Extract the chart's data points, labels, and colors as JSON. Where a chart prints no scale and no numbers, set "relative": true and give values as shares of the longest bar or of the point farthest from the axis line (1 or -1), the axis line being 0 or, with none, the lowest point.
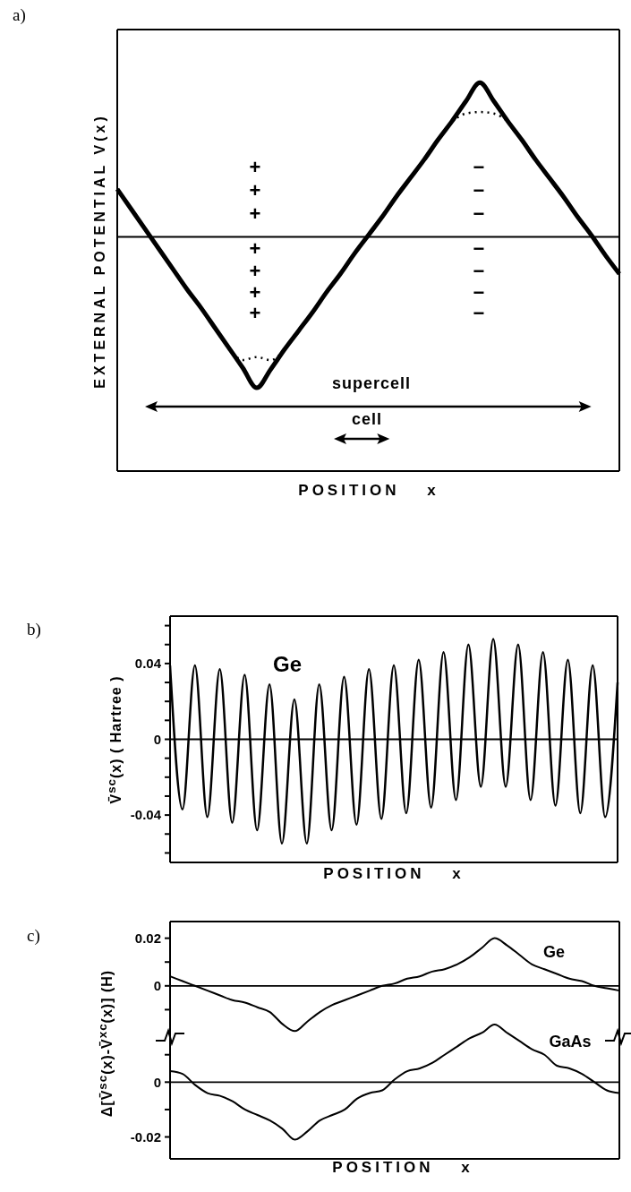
{
  "chart_data": [
    {
      "type": "line",
      "title": "a)",
      "xlabel": "POSITION x",
      "ylabel": "EXTERNAL POTENTIAL V(x)",
      "relative": true,
      "categories": [
        null,
        null,
        null,
        null,
        null,
        null,
        null,
        null,
        null,
        null,
        null,
        null,
        null,
        null,
        null,
        null,
        null,
        null,
        null,
        null,
        null,
        null,
        null,
        null,
        null,
        null,
        null,
        null,
        null,
        null,
        null,
        null,
        null,
        null,
        null,
        null,
        null
      ],
      "series": [
        {
          "color": "#000000",
          "values": [
            0.31,
            0.18,
            0.05,
            -0.08,
            -0.21,
            -0.34,
            -0.46,
            -0.59,
            -0.72,
            -0.85,
            -0.98,
            -0.86,
            -0.73,
            -0.61,
            -0.49,
            -0.36,
            -0.24,
            -0.11,
            0.01,
            0.13,
            0.26,
            0.38,
            0.5,
            0.63,
            0.75,
            0.88,
            1,
            0.88,
            0.75,
            0.63,
            0.5,
            0.38,
            0.26,
            0.13,
            0.01,
            -0.12,
            -0.24
          ]
        },
        {
          "color": "#000000",
          "line_style": "dotted",
          "values": [
            null,
            null,
            null,
            null,
            null,
            null,
            null,
            null,
            -0.72,
            -0.8,
            -0.78,
            -0.8,
            -0.73,
            null,
            null,
            null,
            null,
            null,
            null,
            null,
            null,
            null,
            null,
            null,
            0.75,
            0.8,
            0.81,
            0.8,
            0.75,
            null,
            null,
            null,
            null,
            null,
            null,
            null,
            null
          ]
        }
      ],
      "annotations": [
        "+",
        "+",
        "+",
        "+",
        "+",
        "+",
        "+",
        "−",
        "−",
        "−",
        "−",
        "−",
        "−",
        "−",
        "supercell",
        "cell"
      ]
    },
    {
      "type": "line",
      "title": "b)",
      "xlabel": "POSITION x",
      "ylabel": "V̄$^{sc}$(x)   ( Hartree )",
      "categories": [
        null,
        null,
        null,
        null,
        null,
        null,
        null,
        null,
        null,
        null,
        null,
        null,
        null,
        null,
        null,
        null,
        null,
        null,
        null,
        null,
        null,
        null,
        null,
        null,
        null,
        null,
        null,
        null,
        null,
        null,
        null,
        null,
        null,
        null,
        null,
        null,
        null
      ],
      "series": [
        {
          "name": "Ge",
          "color": "#000000",
          "values": [
            0.039,
            -0.037,
            0.039,
            -0.041,
            0.037,
            -0.044,
            0.034,
            -0.048,
            0.029,
            -0.055,
            0.021,
            -0.055,
            0.029,
            -0.048,
            0.033,
            -0.045,
            0.037,
            -0.042,
            0.039,
            -0.039,
            0.042,
            -0.036,
            0.046,
            -0.032,
            0.05,
            -0.025,
            0.053,
            -0.025,
            0.05,
            -0.032,
            0.046,
            -0.035,
            0.042,
            -0.039,
            0.039,
            -0.041,
            0.03
          ]
        }
      ],
      "ylim": [
        -0.065,
        0.065
      ],
      "yticks": [
        {
          "value": -0.06,
          "label": null
        },
        {
          "value": -0.05,
          "label": null
        },
        -0.04,
        {
          "value": -0.03,
          "label": null
        },
        {
          "value": -0.02,
          "label": null
        },
        {
          "value": -0.01,
          "label": null
        },
        0,
        {
          "value": 0.01,
          "label": null
        },
        {
          "value": 0.02,
          "label": null
        },
        {
          "value": 0.03,
          "label": null
        },
        0.04,
        {
          "value": 0.05,
          "label": null
        },
        {
          "value": 0.06,
          "label": null
        }
      ],
      "ref_lines": [
        {
          "axis": "y",
          "value": 0
        }
      ]
    },
    {
      "type": "line",
      "title": "c)",
      "ylabel": "Δ[V̄$^{sc}$(x)-V̄$^{xc}$(x)]   (H)",
      "categories": [
        null,
        null,
        null,
        null,
        null,
        null,
        null,
        null,
        null,
        null,
        null,
        null,
        null,
        null,
        null,
        null,
        null,
        null,
        null,
        null,
        null,
        null,
        null,
        null,
        null,
        null,
        null,
        null,
        null,
        null,
        null,
        null,
        null,
        null,
        null,
        null,
        null
      ],
      "series": [
        {
          "name": "Ge",
          "color": "#000000",
          "values": [
            0.004,
            0.002,
            0,
            -0.002,
            -0.004,
            -0.006,
            -0.007,
            -0.009,
            -0.011,
            -0.016,
            -0.019,
            -0.015,
            -0.011,
            -0.008,
            -0.006,
            -0.004,
            -0.002,
            0,
            0.001,
            0.003,
            0.004,
            0.006,
            0.007,
            0.009,
            0.012,
            0.016,
            0.02,
            0.017,
            0.013,
            0.009,
            0.007,
            0.005,
            0.003,
            0.002,
            0,
            -0.001,
            -0.002
          ]
        }
      ],
      "ylim": [
        -0.02,
        0.027
      ],
      "yticks": [
        {
          "value": -0.01,
          "label": null
        },
        0,
        {
          "value": 0.01,
          "label": null
        },
        0.02
      ],
      "ref_lines": [
        {
          "axis": "y",
          "value": 0
        }
      ]
    },
    {
      "type": "line",
      "xlabel": "POSITION x",
      "categories": [
        null,
        null,
        null,
        null,
        null,
        null,
        null,
        null,
        null,
        null,
        null,
        null,
        null,
        null,
        null,
        null,
        null,
        null,
        null,
        null,
        null,
        null,
        null,
        null,
        null,
        null,
        null,
        null,
        null,
        null,
        null,
        null,
        null,
        null,
        null,
        null,
        null
      ],
      "series": [
        {
          "name": "GaAs",
          "color": "#000000",
          "values": [
            0.004,
            0.003,
            -0.001,
            -0.004,
            -0.005,
            -0.007,
            -0.01,
            -0.012,
            -0.014,
            -0.017,
            -0.021,
            -0.018,
            -0.014,
            -0.012,
            -0.01,
            -0.006,
            -0.004,
            -0.003,
            0.001,
            0.004,
            0.005,
            0.007,
            0.01,
            0.013,
            0.016,
            0.018,
            0.021,
            0.018,
            0.015,
            0.012,
            0.01,
            0.006,
            0.005,
            0.003,
            0,
            -0.003,
            -0.004
          ]
        }
      ],
      "ylim": [
        -0.028,
        0.022
      ],
      "yticks": [
        -0.02,
        {
          "value": -0.01,
          "label": null
        },
        0,
        {
          "value": 0.01,
          "label": null
        }
      ],
      "ref_lines": [
        {
          "axis": "y",
          "value": 0
        }
      ]
    }
  ]
}
